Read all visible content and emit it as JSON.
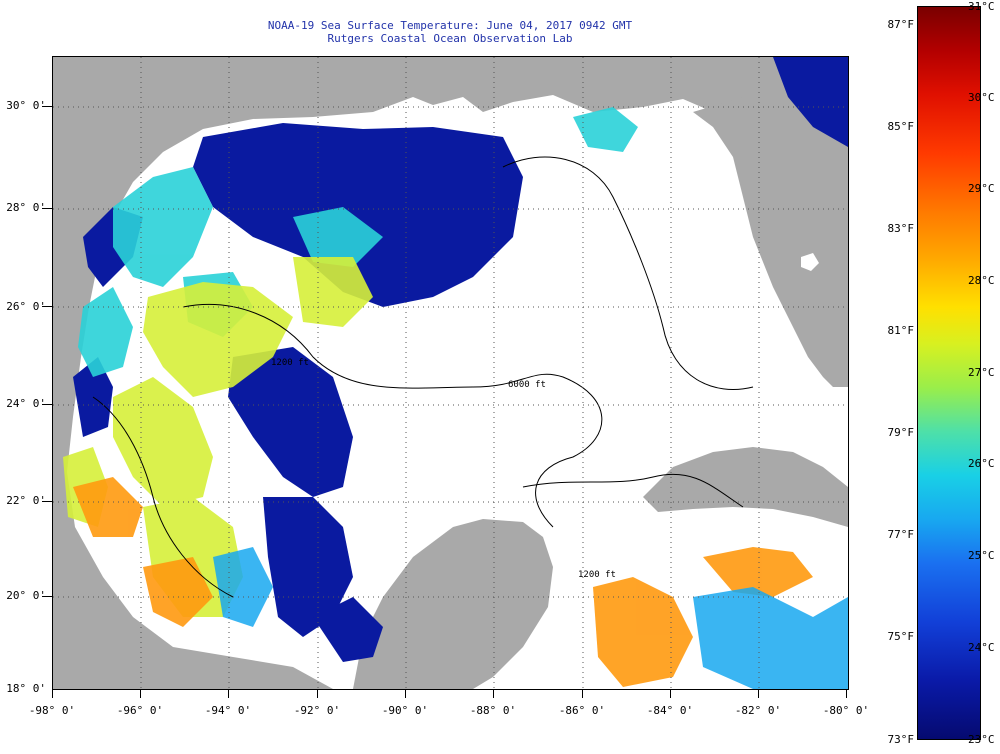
{
  "title": "NOAA-19 Sea Surface Temperature:  June 04, 2017 0942 GMT",
  "subtitle": "Rutgers Coastal Ocean Observation Lab",
  "latitude_labels": [
    "30° 0'",
    "28° 0'",
    "26° 0'",
    "24° 0'",
    "22° 0'",
    "20° 0'",
    "18° 0'"
  ],
  "longitude_labels": [
    "-98° 0'",
    "-96° 0'",
    "-94° 0'",
    "-92° 0'",
    "-90° 0'",
    "-88° 0'",
    "-86° 0'",
    "-84° 0'",
    "-82° 0'",
    "-80° 0'"
  ],
  "colorbar": {
    "celsius_labels": [
      "31°C",
      "30°C",
      "29°C",
      "28°C",
      "27°C",
      "26°C",
      "25°C",
      "24°C",
      "23°C"
    ],
    "fahrenheit_labels": [
      "87°F",
      "85°F",
      "83°F",
      "81°F",
      "79°F",
      "77°F",
      "75°F",
      "73°F"
    ],
    "min_c": 23,
    "max_c": 31
  },
  "contour_labels": [
    "1200 ft",
    "6000 ft",
    "1200 ft"
  ],
  "colors": {
    "land": "#a9a9a9",
    "no_data": "#ffffff",
    "cold": "#0a1aa0",
    "teal": "#2ad2d8",
    "yellow_green": "#d6f03a",
    "orange": "#ff9a10",
    "title_text": "#2233aa"
  }
}
